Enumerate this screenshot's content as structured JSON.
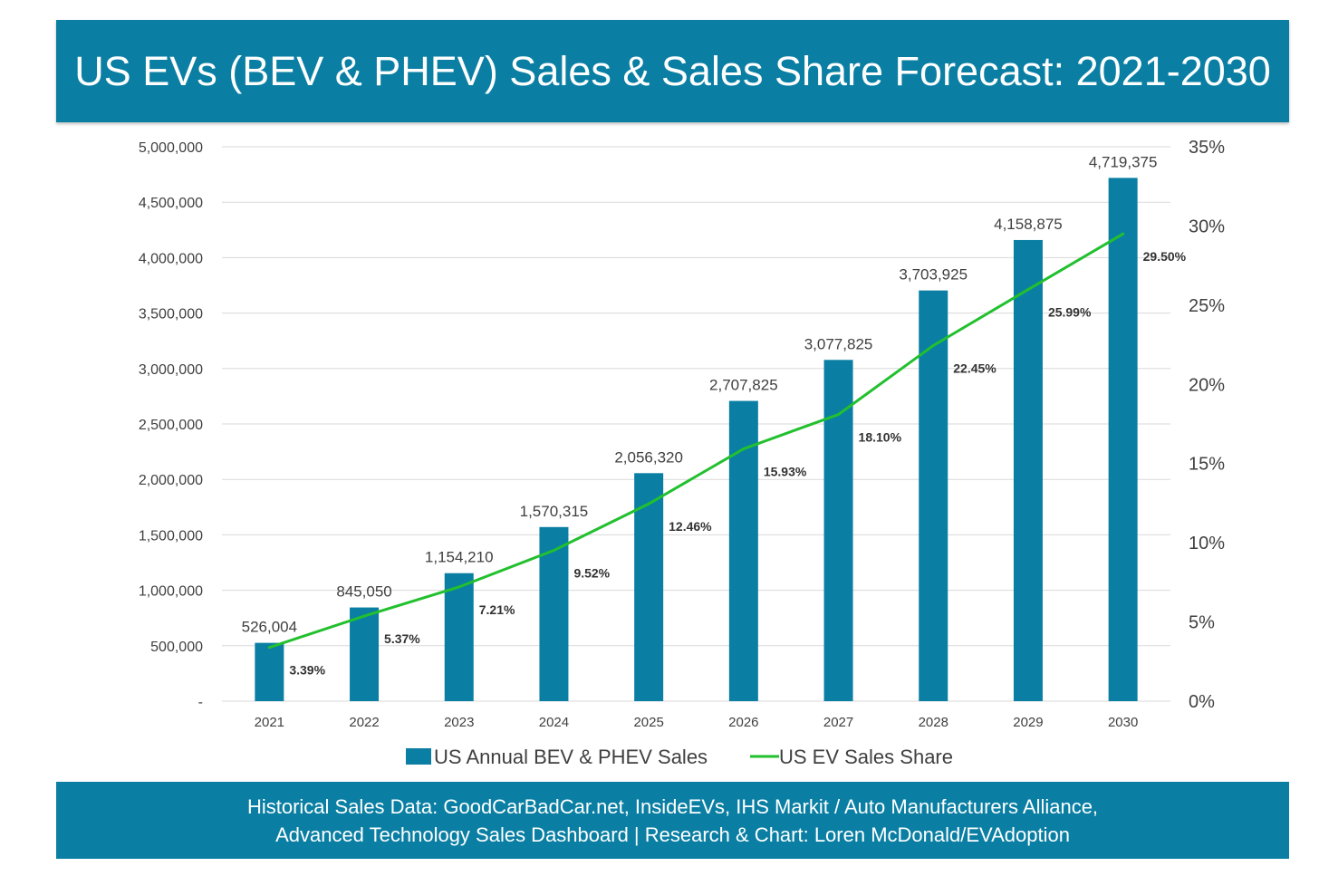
{
  "header": {
    "title": "US EVs (BEV & PHEV) Sales & Sales Share Forecast: 2021-2030"
  },
  "footer": {
    "line1": "Historical Sales Data: GoodCarBadCar.net, InsideEVs, IHS Markit / Auto Manufacturers Alliance,",
    "line2": "Advanced Technology Sales Dashboard | Research & Chart: Loren McDonald/EVAdoption"
  },
  "colors": {
    "bar": "#0A7FA3",
    "line": "#22C02E",
    "grid": "#D9D9D9",
    "text": "#404040"
  },
  "chart_data": {
    "type": "bar+line",
    "title": "US EVs (BEV & PHEV) Sales & Sales Share Forecast: 2021-2030",
    "categories": [
      "2021",
      "2022",
      "2023",
      "2024",
      "2025",
      "2026",
      "2027",
      "2028",
      "2029",
      "2030"
    ],
    "series": [
      {
        "name": "US Annual BEV & PHEV Sales",
        "type": "bar",
        "axis": "left",
        "values": [
          526004,
          845050,
          1154210,
          1570315,
          2056320,
          2707825,
          3077825,
          3703925,
          4158875,
          4719375
        ],
        "labels": [
          "526,004",
          "845,050",
          "1,154,210",
          "1,570,315",
          "2,056,320",
          "2,707,825",
          "3,077,825",
          "3,703,925",
          "4,158,875",
          "4,719,375"
        ]
      },
      {
        "name": "US EV Sales Share",
        "type": "line",
        "axis": "right",
        "values": [
          3.39,
          5.37,
          7.21,
          9.52,
          12.46,
          15.93,
          18.1,
          22.45,
          25.99,
          29.5
        ],
        "labels": [
          "3.39%",
          "5.37%",
          "7.21%",
          "9.52%",
          "12.46%",
          "15.93%",
          "18.10%",
          "22.45%",
          "25.99%",
          "29.50%"
        ]
      }
    ],
    "y_left": {
      "range": [
        0,
        5000000
      ],
      "ticks": [
        "-",
        "500,000",
        "1,000,000",
        "1,500,000",
        "2,000,000",
        "2,500,000",
        "3,000,000",
        "3,500,000",
        "4,000,000",
        "4,500,000",
        "5,000,000"
      ]
    },
    "y_right": {
      "range": [
        0,
        35
      ],
      "ticks": [
        "0%",
        "5%",
        "10%",
        "15%",
        "20%",
        "25%",
        "30%",
        "35%"
      ]
    },
    "grid": true,
    "legend": "bottom"
  }
}
